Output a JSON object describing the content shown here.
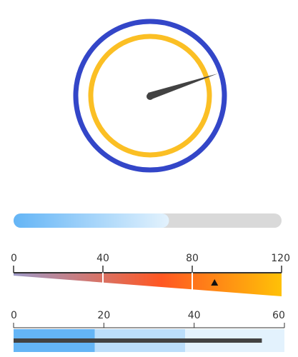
{
  "dial_gauge": {
    "outer_ring_color": "#3346c8",
    "inner_ring_color": "#fbbf24",
    "needle_color": "#424242",
    "needle_direction": "pointing up-right"
  },
  "progress_bar": {
    "fraction": 0.5,
    "fill_gradient": [
      "#64b5f6",
      "#e3f2fd"
    ],
    "track_color": "#d9d9d9"
  },
  "linear_gauge": {
    "min": 0,
    "max": 120,
    "value": 90,
    "ticks": [
      {
        "value": 0,
        "label": "0"
      },
      {
        "value": 40,
        "label": "40"
      },
      {
        "value": 80,
        "label": "80"
      },
      {
        "value": 120,
        "label": "120"
      }
    ],
    "gradient_colors": [
      "#9e9ac8",
      "#ff5722",
      "#ffc107"
    ],
    "marker_symbol": "triangle-up",
    "marker_color": "#111111"
  },
  "bullet_chart": {
    "min": 0,
    "max": 60,
    "value": 55,
    "ranges": [
      {
        "end": 18,
        "color": "#64b5f6"
      },
      {
        "end": 38,
        "color": "#bbdefb"
      },
      {
        "end": 60,
        "color": "#e3f2fd"
      }
    ],
    "ticks": [
      {
        "value": 0,
        "label": "0"
      },
      {
        "value": 20,
        "label": "20"
      },
      {
        "value": 40,
        "label": "40"
      },
      {
        "value": 60,
        "label": "60"
      }
    ],
    "bar_color": "#424242"
  }
}
